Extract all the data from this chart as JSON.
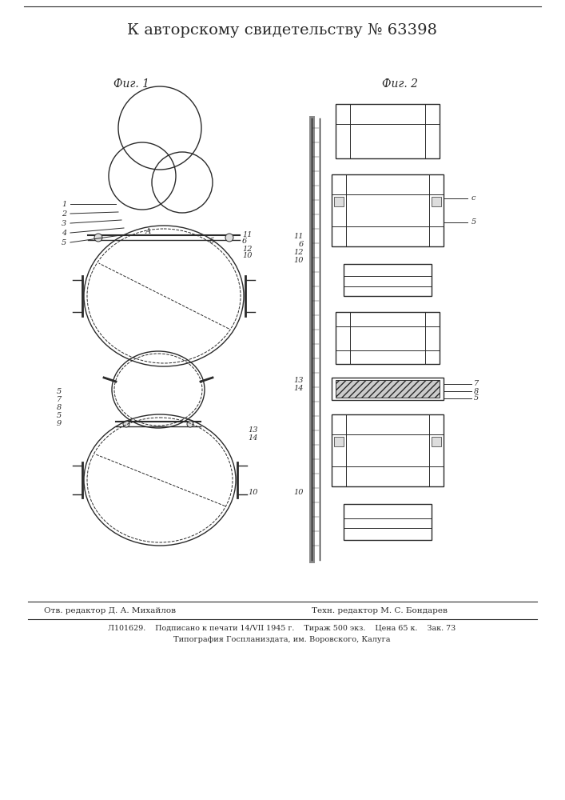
{
  "title": "К авторскому свидетельству № 63398",
  "fig1_label": "Фиг. 1",
  "fig2_label": "Фиг. 2",
  "footer_line1_left": "Отв. редактор Д. А. Михайлов",
  "footer_line1_right": "Техн. редактор М. С. Бондарев",
  "footer_line2": "Л101629.    Подписано к печати 14/VII 1945 г.    Тираж 500 экз.    Цена 65 к.    Зак. 73",
  "footer_line3": "Типография Госпланиздата, им. Воровского, Калуга",
  "bg_color": "#ffffff",
  "line_color": "#2a2a2a"
}
